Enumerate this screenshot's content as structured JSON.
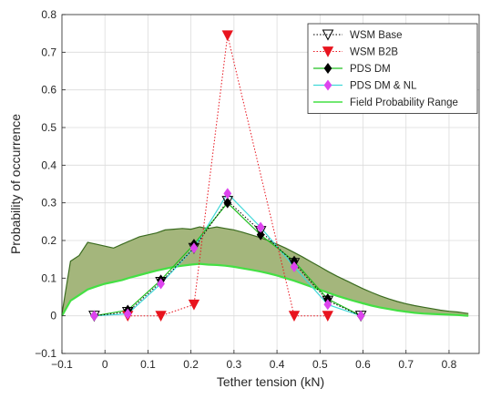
{
  "chart_data": {
    "type": "line",
    "title": "",
    "xlabel": "Tether tension (kN)",
    "ylabel": "Probability of occurrence",
    "xlim": [
      -0.1,
      0.87
    ],
    "ylim": [
      -0.1,
      0.8
    ],
    "xticks": [
      -0.1,
      0,
      0.1,
      0.2,
      0.3,
      0.4,
      0.5,
      0.6,
      0.7,
      0.8
    ],
    "xtick_labels": [
      "−0.1",
      "0",
      "0.1",
      "0.2",
      "0.3",
      "0.4",
      "0.5",
      "0.6",
      "0.7",
      "0.8"
    ],
    "yticks": [
      -0.1,
      0,
      0.1,
      0.2,
      0.3,
      0.4,
      0.5,
      0.6,
      0.7,
      0.8
    ],
    "ytick_labels": [
      "−0.1",
      "0",
      "0.1",
      "0.2",
      "0.3",
      "0.4",
      "0.5",
      "0.6",
      "0.7",
      "0.8"
    ],
    "grid": true,
    "legend_position": "top-right",
    "series": [
      {
        "name": "WSM Base",
        "color": "#000000",
        "marker": "triangle-down-open",
        "line": "dotted",
        "x": [
          -0.025,
          0.053,
          0.13,
          0.207,
          0.285,
          0.362,
          0.44,
          0.518,
          0.595
        ],
        "y": [
          0.0,
          0.01,
          0.09,
          0.18,
          0.305,
          0.225,
          0.14,
          0.04,
          0.0
        ]
      },
      {
        "name": "WSM B2B",
        "color": "#e8141e",
        "marker": "triangle-down-filled",
        "line": "dotted",
        "x": [
          0.053,
          0.13,
          0.207,
          0.285,
          0.44,
          0.518
        ],
        "y": [
          0.0,
          0.0,
          0.03,
          0.745,
          0.0,
          0.0
        ]
      },
      {
        "name": "PDS DM",
        "color": "#000000",
        "line_color": "#22c022",
        "marker": "diamond-filled",
        "line": "solid",
        "x": [
          -0.025,
          0.053,
          0.13,
          0.207,
          0.285,
          0.362,
          0.44,
          0.518,
          0.595
        ],
        "y": [
          0.0,
          0.015,
          0.095,
          0.19,
          0.3,
          0.215,
          0.145,
          0.045,
          0.0
        ]
      },
      {
        "name": "PDS DM & NL",
        "color": "#dd44ee",
        "line_color": "#40d8d8",
        "marker": "diamond-filled",
        "line": "solid",
        "x": [
          -0.025,
          0.053,
          0.13,
          0.207,
          0.285,
          0.362,
          0.44,
          0.518,
          0.595
        ],
        "y": [
          0.0,
          0.005,
          0.085,
          0.18,
          0.325,
          0.235,
          0.13,
          0.03,
          0.0
        ]
      },
      {
        "name": "Field Probability Range",
        "type": "area-range",
        "color": "#44e044",
        "fill": "#a4b67c",
        "edge": "#3a6b1f",
        "x": [
          -0.1,
          -0.08,
          -0.06,
          -0.04,
          -0.02,
          0.0,
          0.02,
          0.04,
          0.06,
          0.08,
          0.1,
          0.12,
          0.14,
          0.16,
          0.18,
          0.2,
          0.22,
          0.24,
          0.26,
          0.28,
          0.3,
          0.32,
          0.34,
          0.36,
          0.38,
          0.4,
          0.42,
          0.44,
          0.46,
          0.48,
          0.5,
          0.52,
          0.54,
          0.56,
          0.58,
          0.6,
          0.62,
          0.64,
          0.66,
          0.68,
          0.7,
          0.72,
          0.74,
          0.76,
          0.78,
          0.8,
          0.82,
          0.845
        ],
        "upper": [
          0.005,
          0.145,
          0.16,
          0.195,
          0.19,
          0.185,
          0.18,
          0.19,
          0.2,
          0.21,
          0.215,
          0.22,
          0.228,
          0.23,
          0.232,
          0.23,
          0.236,
          0.232,
          0.236,
          0.232,
          0.228,
          0.222,
          0.215,
          0.208,
          0.2,
          0.19,
          0.18,
          0.168,
          0.156,
          0.143,
          0.13,
          0.117,
          0.105,
          0.094,
          0.083,
          0.072,
          0.062,
          0.053,
          0.045,
          0.038,
          0.032,
          0.027,
          0.023,
          0.019,
          0.015,
          0.012,
          0.01,
          0.006
        ],
        "lower": [
          0.0,
          0.04,
          0.055,
          0.07,
          0.078,
          0.085,
          0.09,
          0.095,
          0.102,
          0.108,
          0.114,
          0.12,
          0.125,
          0.13,
          0.133,
          0.136,
          0.138,
          0.136,
          0.135,
          0.133,
          0.13,
          0.126,
          0.122,
          0.118,
          0.113,
          0.107,
          0.1,
          0.093,
          0.085,
          0.077,
          0.069,
          0.061,
          0.053,
          0.046,
          0.039,
          0.033,
          0.027,
          0.022,
          0.018,
          0.014,
          0.011,
          0.008,
          0.006,
          0.005,
          0.004,
          0.003,
          0.002,
          0.0
        ]
      }
    ]
  }
}
